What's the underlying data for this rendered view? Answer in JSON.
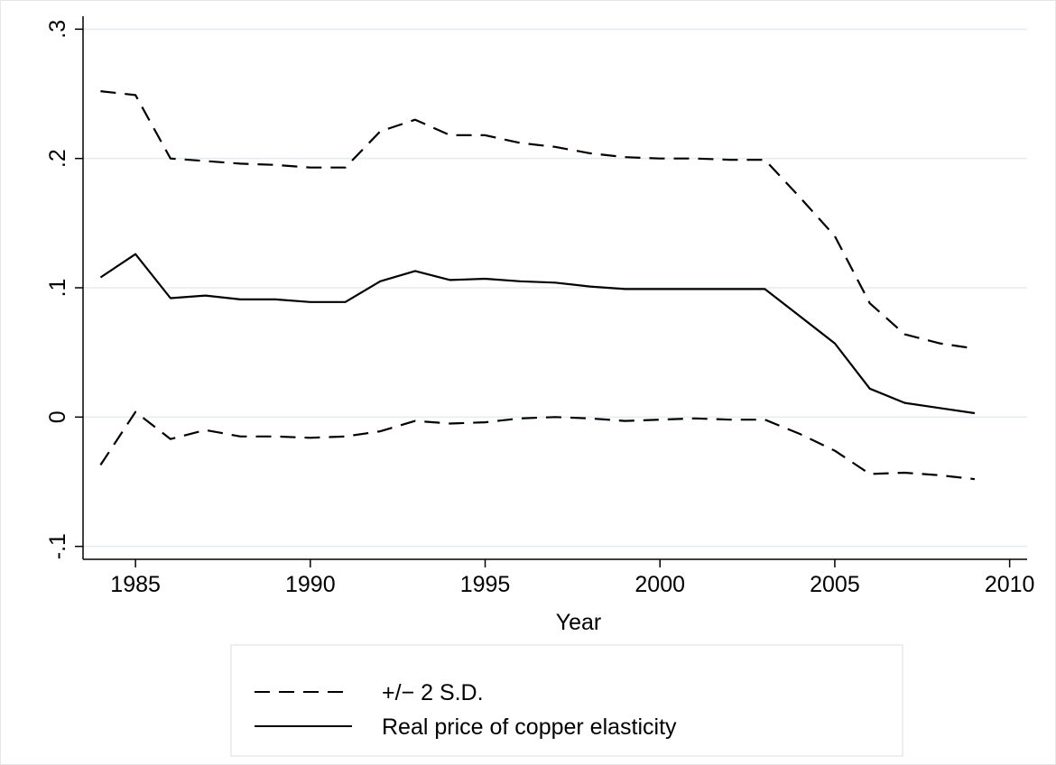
{
  "chart_data": {
    "type": "line",
    "xlabel": "Year",
    "ylabel": "",
    "xlim": [
      1983.5,
      2010.5
    ],
    "ylim": [
      -0.11,
      0.31
    ],
    "x_ticks": [
      1985,
      1990,
      1995,
      2000,
      2005,
      2010
    ],
    "x_tick_labels": [
      "1985",
      "1990",
      "1995",
      "2000",
      "2005",
      "2010"
    ],
    "y_ticks": [
      -0.1,
      0,
      0.1,
      0.2,
      0.3
    ],
    "y_tick_labels": [
      "-.1",
      "0",
      ".1",
      ".2",
      ".3"
    ],
    "grid": "horizontal",
    "legend_placement": "bottom",
    "x": [
      1984,
      1985,
      1986,
      1987,
      1988,
      1989,
      1990,
      1991,
      1992,
      1993,
      1994,
      1995,
      1996,
      1997,
      1998,
      1999,
      2000,
      2001,
      2002,
      2003,
      2004,
      2005,
      2006,
      2007,
      2008,
      2009
    ],
    "series": [
      {
        "name": "+/− 2 S.D.",
        "style": "dashed",
        "values": [
          0.252,
          0.249,
          0.2,
          0.198,
          0.196,
          0.195,
          0.193,
          0.193,
          0.221,
          0.23,
          0.218,
          0.218,
          0.212,
          0.209,
          0.204,
          0.201,
          0.2,
          0.2,
          0.199,
          0.199,
          0.17,
          0.14,
          0.088,
          0.064,
          0.057,
          0.053
        ]
      },
      {
        "name": "Real price of copper elasticity",
        "style": "solid",
        "values": [
          0.108,
          0.126,
          0.092,
          0.094,
          0.091,
          0.091,
          0.089,
          0.089,
          0.105,
          0.113,
          0.106,
          0.107,
          0.105,
          0.104,
          0.101,
          0.099,
          0.099,
          0.099,
          0.099,
          0.099,
          0.078,
          0.057,
          0.022,
          0.011,
          0.007,
          0.003
        ]
      },
      {
        "name": "",
        "style": "dashed",
        "values": [
          -0.037,
          0.004,
          -0.017,
          -0.01,
          -0.015,
          -0.015,
          -0.016,
          -0.015,
          -0.011,
          -0.003,
          -0.005,
          -0.004,
          -0.001,
          0.0,
          -0.001,
          -0.003,
          -0.002,
          -0.001,
          -0.002,
          -0.002,
          -0.013,
          -0.026,
          -0.044,
          -0.043,
          -0.045,
          -0.048
        ]
      }
    ],
    "legend": [
      {
        "label": "+/− 2 S.D.",
        "style": "dashed"
      },
      {
        "label": "Real price of copper elasticity",
        "style": "solid"
      }
    ]
  }
}
